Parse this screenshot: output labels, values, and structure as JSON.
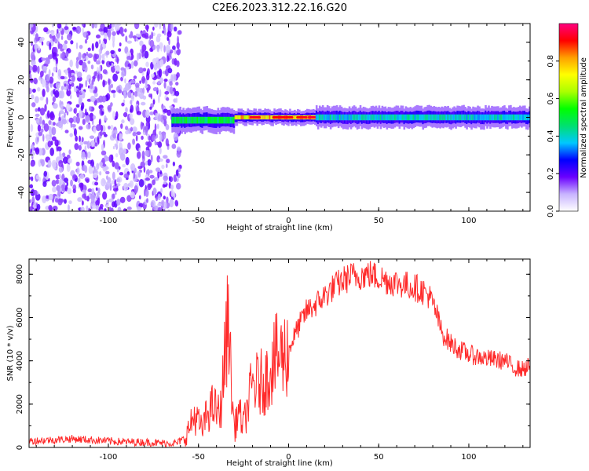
{
  "title": "C2E6.2023.312.22.16.G20",
  "chart_data": [
    {
      "type": "heatmap",
      "panel": "spectrogram",
      "xlabel": "Height of straight line (km)",
      "ylabel": "Frequency (Hz)",
      "xlim": [
        -144,
        134
      ],
      "ylim": [
        -50,
        50
      ],
      "x_ticks": [
        -100,
        -50,
        0,
        50,
        100
      ],
      "y_ticks": [
        -40,
        -20,
        0,
        20,
        40
      ],
      "grid": false,
      "colorbar": {
        "label": "Normalized spectral amplitude",
        "range": [
          0.0,
          1.0
        ],
        "ticks": [
          "0.0",
          "0.2",
          "0.4",
          "0.6",
          "0.8"
        ],
        "colormap": [
          "#ffffff",
          "#c8b4ff",
          "#6a00ff",
          "#0000ff",
          "#00c8ff",
          "#00e070",
          "#00ff00",
          "#aaff00",
          "#ffff00",
          "#ffa000",
          "#ff0000",
          "#ff0080"
        ]
      },
      "regions": [
        {
          "kind": "noise",
          "x_range": [
            -144,
            -60
          ],
          "y_range": [
            -50,
            50
          ],
          "amplitude": [
            0.05,
            0.2
          ]
        },
        {
          "kind": "signal",
          "x_range": [
            -65,
            -30
          ],
          "center_y": -1.5,
          "halfwidth_y": 4,
          "peak_amplitude": 0.55
        },
        {
          "kind": "signal",
          "x_range": [
            -30,
            15
          ],
          "center_y": 0,
          "halfwidth_y": 2.5,
          "peak_amplitude": 0.85
        },
        {
          "kind": "signal",
          "x_range": [
            15,
            134
          ],
          "center_y": 0,
          "halfwidth_y": 3.5,
          "peak_amplitude": 0.45
        }
      ]
    },
    {
      "type": "line",
      "panel": "snr",
      "xlabel": "Height of straight line (km)",
      "ylabel": "SNR (10 * v/v)",
      "xlim": [
        -144,
        134
      ],
      "ylim": [
        0,
        8700
      ],
      "x_ticks": [
        -100,
        -50,
        0,
        50,
        100
      ],
      "y_ticks": [
        0,
        2000,
        4000,
        6000,
        8000
      ],
      "grid": false,
      "series": [
        {
          "color": "#ff2a2a",
          "x": [
            -144,
            -130,
            -120,
            -110,
            -100,
            -90,
            -80,
            -70,
            -62,
            -58,
            -55,
            -52,
            -48,
            -45,
            -42,
            -38,
            -36,
            -34,
            -33,
            -32,
            -30,
            -28,
            -25,
            -22,
            -20,
            -18,
            -15,
            -12,
            -10,
            -7,
            -5,
            -2,
            0,
            5,
            10,
            15,
            20,
            25,
            30,
            35,
            40,
            45,
            50,
            55,
            60,
            65,
            70,
            75,
            78,
            82,
            85,
            90,
            95,
            100,
            110,
            120,
            125,
            130,
            134
          ],
          "y": [
            300,
            350,
            400,
            350,
            300,
            250,
            250,
            200,
            200,
            400,
            900,
            1500,
            800,
            1600,
            1900,
            1500,
            3500,
            5500,
            6500,
            3000,
            800,
            1700,
            1000,
            2200,
            2900,
            2900,
            3000,
            3200,
            3800,
            4100,
            4200,
            4300,
            4500,
            5500,
            6300,
            6600,
            7000,
            7400,
            7700,
            7900,
            7950,
            8000,
            7850,
            7700,
            7600,
            7500,
            7400,
            7200,
            7000,
            6200,
            5300,
            4800,
            4500,
            4300,
            4100,
            4000,
            3700,
            3600,
            3800
          ]
        }
      ]
    }
  ]
}
